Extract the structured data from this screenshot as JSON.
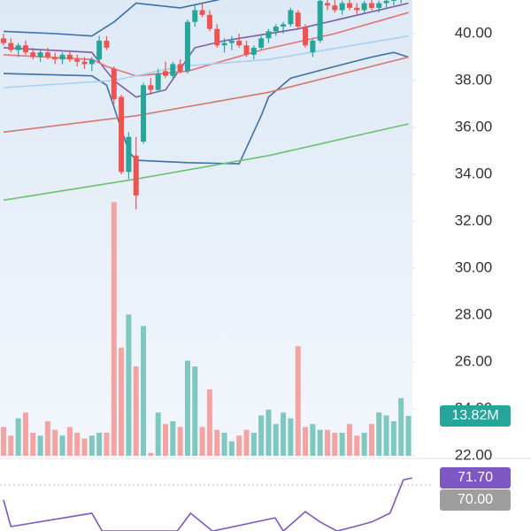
{
  "chart_data": {
    "type": "candlestick",
    "xlim": [
      -0.48,
      55.54
    ],
    "ylim": [
      22,
      41.434
    ],
    "yticks": [
      {
        "value": 22,
        "label": "22.00"
      },
      {
        "value": 24,
        "label": "24.00"
      },
      {
        "value": 26,
        "label": "26.00"
      },
      {
        "value": 28,
        "label": "28.00"
      },
      {
        "value": 30,
        "label": "30.00"
      },
      {
        "value": 32,
        "label": "32.00"
      },
      {
        "value": 34,
        "label": "34.00"
      },
      {
        "value": 36,
        "label": "36.00"
      },
      {
        "value": 38,
        "label": "38.00"
      },
      {
        "value": 40,
        "label": "40.00"
      }
    ],
    "up_color": "#26a69a",
    "down_color": "#ef5350",
    "candles": [
      [
        39.8,
        40.0,
        39.5,
        39.6
      ],
      [
        39.6,
        39.8,
        39.2,
        39.3
      ],
      [
        39.3,
        39.6,
        39.0,
        39.5
      ],
      [
        39.5,
        39.7,
        39.1,
        39.2
      ],
      [
        39.2,
        39.4,
        38.9,
        39.0
      ],
      [
        39.0,
        39.3,
        38.8,
        39.2
      ],
      [
        39.2,
        39.4,
        38.9,
        39.0
      ],
      [
        39.0,
        39.2,
        38.7,
        38.9
      ],
      [
        38.9,
        39.2,
        38.7,
        39.1
      ],
      [
        39.1,
        39.3,
        38.8,
        38.9
      ],
      [
        38.9,
        39.1,
        38.6,
        38.8
      ],
      [
        38.8,
        39.0,
        38.5,
        38.7
      ],
      [
        38.7,
        39.0,
        38.4,
        38.9
      ],
      [
        38.9,
        39.9,
        38.8,
        39.7
      ],
      [
        39.7,
        39.9,
        39.3,
        39.4
      ],
      [
        38.5,
        38.6,
        37.0,
        37.2
      ],
      [
        37.3,
        37.4,
        34.0,
        34.1
      ],
      [
        34.1,
        35.8,
        33.8,
        35.6
      ],
      [
        34.8,
        35.6,
        32.5,
        33.1
      ],
      [
        35.4,
        37.9,
        35.3,
        37.8
      ],
      [
        37.8,
        38.1,
        37.4,
        37.6
      ],
      [
        37.6,
        38.5,
        37.5,
        38.3
      ],
      [
        38.4,
        38.8,
        38.1,
        38.2
      ],
      [
        38.2,
        38.8,
        38.0,
        38.7
      ],
      [
        38.7,
        38.9,
        38.3,
        38.4
      ],
      [
        38.4,
        40.6,
        38.3,
        40.5
      ],
      [
        40.5,
        41.2,
        40.3,
        41.0
      ],
      [
        41.0,
        41.3,
        40.7,
        40.8
      ],
      [
        40.8,
        41.0,
        40.1,
        40.2
      ],
      [
        40.2,
        40.4,
        39.4,
        39.5
      ],
      [
        39.5,
        39.8,
        39.2,
        39.6
      ],
      [
        39.6,
        39.9,
        39.3,
        39.7
      ],
      [
        39.7,
        40.0,
        39.4,
        39.5
      ],
      [
        39.5,
        39.7,
        39.0,
        39.1
      ],
      [
        39.1,
        39.5,
        38.9,
        39.4
      ],
      [
        39.4,
        39.9,
        39.3,
        39.8
      ],
      [
        39.8,
        40.2,
        39.6,
        40.1
      ],
      [
        40.1,
        40.4,
        39.9,
        40.3
      ],
      [
        40.3,
        40.5,
        40.0,
        40.4
      ],
      [
        40.4,
        41.1,
        40.3,
        41.0
      ],
      [
        40.9,
        41.0,
        40.2,
        40.3
      ],
      [
        40.3,
        40.4,
        39.4,
        39.5
      ],
      [
        39.2,
        39.8,
        39.0,
        39.7
      ],
      [
        39.7,
        41.5,
        39.6,
        41.4
      ],
      [
        41.3,
        41.5,
        41.0,
        41.2
      ],
      [
        41.2,
        41.5,
        40.9,
        41.0
      ],
      [
        41.0,
        41.4,
        40.8,
        41.3
      ],
      [
        41.3,
        41.5,
        41.0,
        41.1
      ],
      [
        41.1,
        41.3,
        40.8,
        41.0
      ],
      [
        41.0,
        41.4,
        40.9,
        41.3
      ],
      [
        41.3,
        41.5,
        41.0,
        41.1
      ],
      [
        41.1,
        41.4,
        40.9,
        41.3
      ],
      [
        41.3,
        41.6,
        41.1,
        41.4
      ],
      [
        41.4,
        41.7,
        41.2,
        41.5
      ],
      [
        41.5,
        41.8,
        41.3,
        41.7
      ],
      [
        41.7,
        41.9,
        41.5,
        41.8
      ]
    ],
    "volume": {
      "ylim": [
        0,
        158.1
      ],
      "up_color": "#7fc8bf",
      "down_color": "#f4a3a3",
      "values": [
        10,
        7,
        13,
        15,
        8,
        7,
        12,
        9,
        7,
        10,
        8,
        6,
        7,
        8,
        8,
        88,
        37.5,
        49,
        31,
        45,
        1,
        15,
        11,
        12,
        10,
        33,
        31,
        10,
        23,
        9,
        8,
        5,
        7,
        9,
        8,
        14,
        16,
        11,
        15,
        13,
        38,
        10,
        11,
        9,
        9,
        8,
        8,
        11,
        7,
        8,
        11,
        15,
        14,
        12,
        20,
        13.82
      ],
      "last_label": "13.82M",
      "label_color": "#26a69a"
    },
    "series": [
      {
        "color": "#3d6fa8",
        "x": [
          0,
          7,
          12,
          15,
          18,
          24,
          30,
          31,
          40,
          55
        ],
        "values": [
          40.1,
          40.0,
          39.9,
          40.5,
          41.3,
          41.1,
          41.5,
          41.8,
          42.0,
          42.2
        ]
      },
      {
        "color": "#3d6fa8",
        "x": [
          0,
          12,
          14,
          17,
          18,
          25,
          32,
          35,
          36,
          39,
          45,
          50,
          53,
          55
        ],
        "values": [
          38.3,
          38.2,
          37.8,
          35.0,
          34.6,
          34.5,
          34.45,
          36.5,
          37.3,
          38.1,
          38.6,
          39.0,
          39.2,
          39.0
        ]
      },
      {
        "color": "#7b5ea7",
        "x": [
          0,
          12,
          15,
          18,
          22,
          26,
          30,
          40,
          55
        ],
        "values": [
          39.4,
          39.2,
          38.0,
          37.3,
          37.6,
          39.4,
          39.7,
          40.2,
          41.3
        ]
      },
      {
        "color": "#e57373",
        "x": [
          0,
          12,
          14,
          18,
          25,
          35,
          45,
          55
        ],
        "values": [
          39.1,
          38.9,
          38.6,
          38.2,
          38.4,
          39.3,
          40.0,
          40.9
        ]
      },
      {
        "color": "#a8d0f0",
        "x": [
          0,
          15,
          24,
          36,
          55
        ],
        "values": [
          37.7,
          38.0,
          38.6,
          38.9,
          39.9
        ]
      },
      {
        "color": "#d9746f",
        "x": [
          0,
          18,
          36,
          55
        ],
        "values": [
          35.8,
          36.5,
          37.5,
          39.0
        ]
      },
      {
        "color": "#6cc070",
        "x": [
          0,
          18,
          36,
          55
        ],
        "values": [
          32.9,
          33.8,
          34.8,
          36.15
        ]
      }
    ],
    "rsi": {
      "ylim": [
        58.93,
        75.96
      ],
      "color": "#7e57c2",
      "x": [
        0,
        1,
        12,
        13.4,
        23.6,
        25.4,
        28.4,
        36.9,
        38,
        41,
        43,
        45.3,
        47.7,
        50,
        52.5,
        54.3,
        55.5
      ],
      "values": [
        66.4,
        60.0,
        63.2,
        58.9,
        58.9,
        63.2,
        58.9,
        62.1,
        58.9,
        63.6,
        61.1,
        58.9,
        60.0,
        61.1,
        63.2,
        71.2,
        71.7
      ],
      "last_label": "71.70",
      "level": {
        "value": 70,
        "label": "70.00"
      },
      "level_color": "#9e9e9e"
    }
  }
}
